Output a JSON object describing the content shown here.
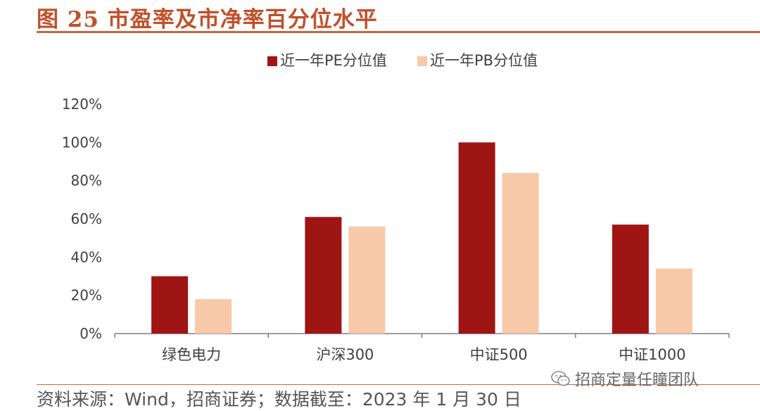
{
  "header": {
    "figure_title": "图 25 市盈率及市净率百分位水平"
  },
  "footer": {
    "source": "资料来源：Wind，招商证券；数据截至：2023 年 1 月 30 日",
    "watermark": "招商定量任瞳团队",
    "watermark_icon": "wechat-icon"
  },
  "colors": {
    "pe": "#9e1513",
    "pb": "#f7c9a8",
    "accent": "#c8683f",
    "axis": "#7f7f7f",
    "text": "#404040"
  },
  "chart_data": {
    "type": "bar",
    "title": "",
    "xlabel": "",
    "ylabel": "",
    "categories": [
      "绿色电力",
      "沪深300",
      "中证500",
      "中证1000"
    ],
    "series": [
      {
        "name": "近一年PE分位值",
        "values": [
          0.3,
          0.61,
          1.0,
          0.57
        ]
      },
      {
        "name": "近一年PB分位值",
        "values": [
          0.18,
          0.56,
          0.84,
          0.34
        ]
      }
    ],
    "ylim": [
      0,
      1.2
    ],
    "yticks": [
      0,
      0.2,
      0.4,
      0.6,
      0.8,
      1.0,
      1.2
    ],
    "ytick_labels": [
      "0%",
      "20%",
      "40%",
      "60%",
      "80%",
      "100%",
      "120%"
    ],
    "grid": false,
    "legend_position": "top-center"
  }
}
